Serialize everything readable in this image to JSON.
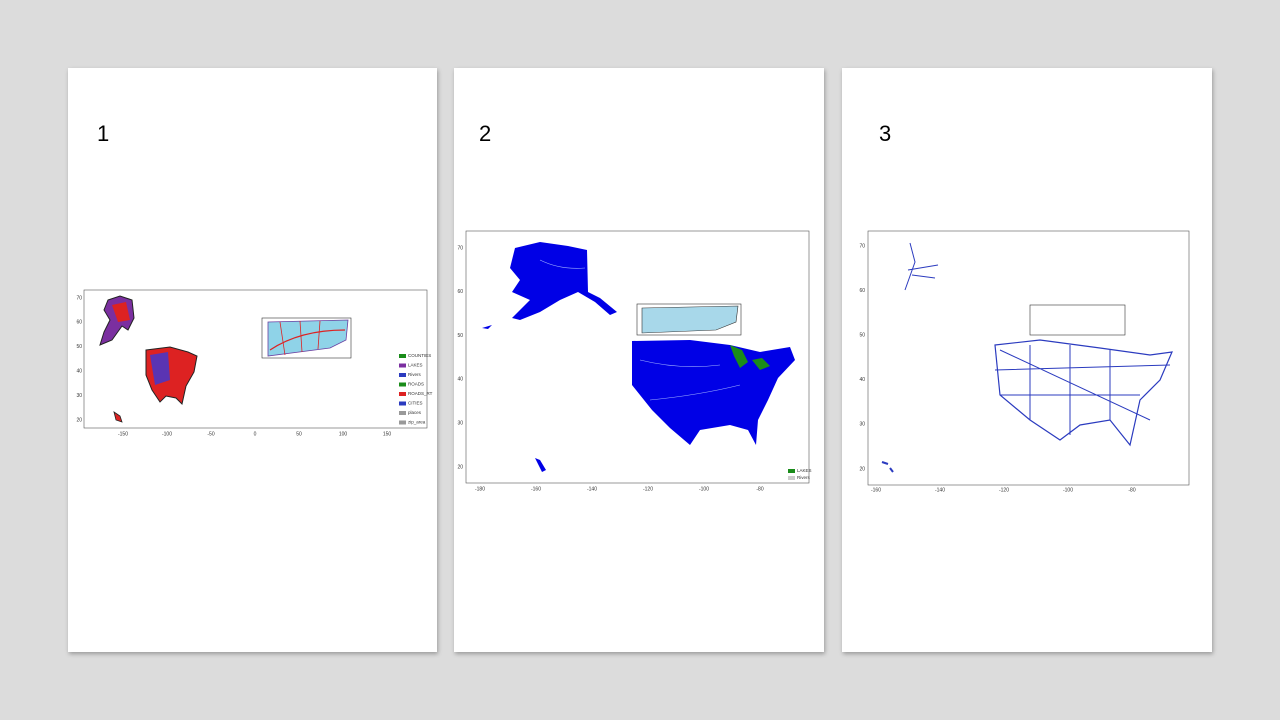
{
  "pages": [
    {
      "number": "1",
      "map": {
        "xticks": [
          -150,
          -100,
          -50,
          0,
          50,
          100,
          150
        ],
        "yticks": [
          20,
          30,
          40,
          50,
          60,
          70
        ],
        "legend": [
          "COUNTIES",
          "LAKES",
          "Rivers",
          "ROADS",
          "ROADS_RT",
          "CITIES",
          "places",
          "zip_area"
        ]
      }
    },
    {
      "number": "2",
      "map": {
        "xticks": [
          -180,
          -160,
          -140,
          -120,
          -100,
          -80
        ],
        "yticks": [
          20,
          30,
          40,
          50,
          60,
          70
        ],
        "legend": [
          "LAKES",
          "Rivers"
        ]
      }
    },
    {
      "number": "3",
      "map": {
        "xticks": [
          -160,
          -140,
          -120,
          -100,
          -80
        ],
        "yticks": [
          20,
          30,
          40,
          50,
          60,
          70
        ]
      }
    }
  ]
}
